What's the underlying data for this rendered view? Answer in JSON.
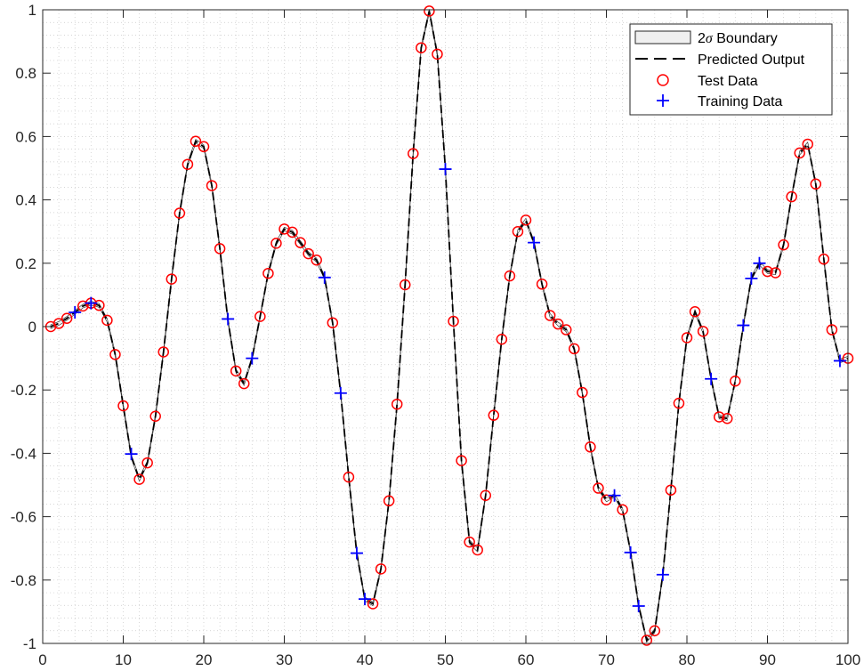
{
  "chart_data": {
    "type": "line",
    "title": "",
    "xlabel": "",
    "ylabel": "",
    "xlim": [
      0,
      100
    ],
    "ylim": [
      -1,
      1
    ],
    "xticks": [
      "0",
      "10",
      "20",
      "30",
      "40",
      "50",
      "60",
      "70",
      "80",
      "90",
      "100"
    ],
    "yticks": [
      "-1",
      "-0.8",
      "-0.6",
      "-0.4",
      "-0.2",
      "0",
      "0.2",
      "0.4",
      "0.6",
      "0.8",
      "1"
    ],
    "grid": "minor dotted",
    "legend_position": "top-right",
    "legend": {
      "boundary_prefix": "2",
      "boundary_sigma": "σ",
      "boundary_suffix": " Boundary",
      "predicted": "Predicted Output",
      "test": "Test Data",
      "training": "Training Data"
    },
    "colors": {
      "predicted": "#000000",
      "test": "#ff0000",
      "training": "#0000ff",
      "boundary_fill": "#f0f0f0"
    },
    "predicted_output": {
      "x": [
        1,
        2,
        3,
        4,
        5,
        6,
        7,
        8,
        9,
        10,
        11,
        12,
        13,
        14,
        15,
        16,
        17,
        18,
        19,
        20,
        21,
        22,
        23,
        24,
        25,
        26,
        27,
        28,
        29,
        30,
        31,
        32,
        33,
        34,
        35,
        36,
        37,
        38,
        39,
        40,
        41,
        42,
        43,
        44,
        45,
        46,
        47,
        48,
        49,
        50,
        51,
        52,
        53,
        54,
        55,
        56,
        57,
        58,
        59,
        60,
        61,
        62,
        63,
        64,
        65,
        66,
        67,
        68,
        69,
        70,
        71,
        72,
        73,
        74,
        75,
        76,
        77,
        78,
        79,
        80,
        81,
        82,
        83,
        84,
        85,
        86,
        87,
        88,
        89,
        90,
        91,
        92,
        93,
        94,
        95,
        96,
        97,
        98,
        99,
        100
      ],
      "y": [
        0,
        0.01,
        0.026,
        0.045,
        0.065,
        0.074,
        0.067,
        0.02,
        -0.088,
        -0.25,
        -0.41,
        -0.482,
        -0.43,
        -0.283,
        -0.08,
        0.15,
        0.358,
        0.512,
        0.585,
        0.568,
        0.445,
        0.246,
        0.02,
        -0.14,
        -0.18,
        -0.1,
        0.032,
        0.168,
        0.263,
        0.308,
        0.298,
        0.265,
        0.23,
        0.21,
        0.155,
        0.012,
        -0.21,
        -0.475,
        -0.715,
        -0.86,
        -0.875,
        -0.765,
        -0.55,
        -0.245,
        0.132,
        0.546,
        0.88,
        0.996,
        0.86,
        0.5,
        0.017,
        -0.423,
        -0.68,
        -0.705,
        -0.533,
        -0.28,
        -0.04,
        0.16,
        0.3,
        0.336,
        0.265,
        0.134,
        0.035,
        0.008,
        -0.01,
        -0.07,
        -0.208,
        -0.38,
        -0.51,
        -0.547,
        -0.533,
        -0.578,
        -0.71,
        -0.88,
        -0.99,
        -0.96,
        -0.785,
        -0.516,
        -0.242,
        -0.035,
        0.047,
        -0.015,
        -0.165,
        -0.285,
        -0.29,
        -0.172,
        0.004,
        0.152,
        0.2,
        0.174,
        0.17,
        0.258,
        0.41,
        0.548,
        0.576,
        0.45,
        0.213,
        -0.01,
        -0.108,
        -0.1
      ]
    },
    "test_data": {
      "x": [
        1,
        2,
        3,
        5,
        6,
        7,
        8,
        9,
        10,
        12,
        13,
        14,
        15,
        16,
        17,
        18,
        19,
        20,
        21,
        22,
        24,
        25,
        27,
        28,
        29,
        30,
        31,
        32,
        33,
        34,
        36,
        38,
        41,
        42,
        43,
        44,
        45,
        46,
        47,
        48,
        49,
        51,
        52,
        53,
        54,
        55,
        56,
        57,
        58,
        59,
        60,
        62,
        63,
        64,
        65,
        66,
        67,
        68,
        69,
        70,
        72,
        75,
        76,
        78,
        79,
        80,
        81,
        82,
        84,
        85,
        86,
        90,
        91,
        92,
        93,
        94,
        95,
        96,
        97,
        98,
        100
      ],
      "y": [
        0,
        0.01,
        0.026,
        0.065,
        0.074,
        0.067,
        0.02,
        -0.088,
        -0.25,
        -0.482,
        -0.43,
        -0.283,
        -0.08,
        0.15,
        0.358,
        0.512,
        0.585,
        0.568,
        0.445,
        0.246,
        -0.14,
        -0.18,
        0.032,
        0.168,
        0.263,
        0.308,
        0.298,
        0.265,
        0.23,
        0.21,
        0.012,
        -0.475,
        -0.875,
        -0.765,
        -0.55,
        -0.245,
        0.132,
        0.546,
        0.88,
        0.996,
        0.86,
        0.017,
        -0.423,
        -0.68,
        -0.705,
        -0.533,
        -0.28,
        -0.04,
        0.16,
        0.3,
        0.336,
        0.134,
        0.035,
        0.008,
        -0.01,
        -0.07,
        -0.208,
        -0.38,
        -0.51,
        -0.547,
        -0.578,
        -0.99,
        -0.96,
        -0.516,
        -0.242,
        -0.035,
        0.047,
        -0.015,
        -0.285,
        -0.29,
        -0.172,
        0.174,
        0.17,
        0.258,
        0.41,
        0.548,
        0.576,
        0.45,
        0.213,
        -0.01,
        -0.1
      ]
    },
    "training_data": {
      "x": [
        4,
        6,
        11,
        23,
        26,
        35,
        37,
        39,
        40,
        50,
        61,
        71,
        73,
        74,
        77,
        83,
        87,
        88,
        89,
        99
      ],
      "y": [
        0.045,
        0.074,
        -0.402,
        0.024,
        -0.1,
        0.155,
        -0.21,
        -0.715,
        -0.86,
        0.497,
        0.265,
        -0.533,
        -0.713,
        -0.882,
        -0.783,
        -0.165,
        0.004,
        0.152,
        0.2,
        -0.108
      ]
    }
  }
}
